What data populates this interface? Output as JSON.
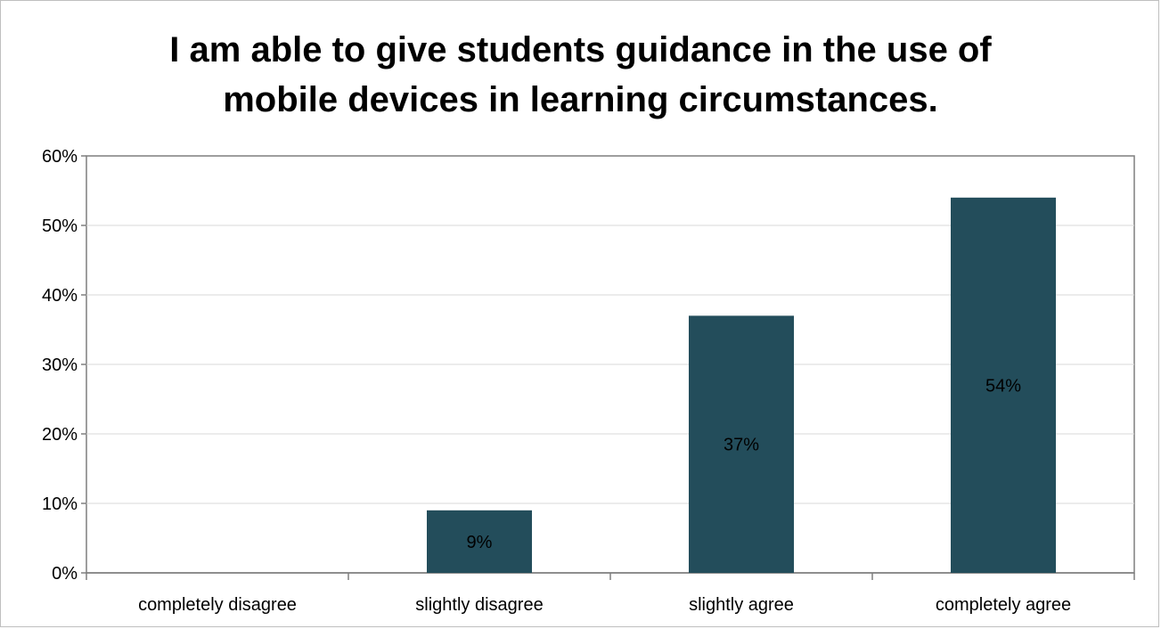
{
  "chart_data": {
    "type": "bar",
    "title_lines": [
      "I am able to give students guidance in the use of",
      "mobile devices in learning circumstances."
    ],
    "categories": [
      "completely disagree",
      "slightly disagree",
      "slightly agree",
      "completely agree"
    ],
    "values": [
      0,
      9,
      37,
      54
    ],
    "data_labels": [
      "",
      "9%",
      "37%",
      "54%"
    ],
    "y_ticks": [
      "0%",
      "10%",
      "20%",
      "30%",
      "40%",
      "50%",
      "60%"
    ],
    "ylim": [
      0,
      60
    ],
    "grid": true,
    "bar_color": "#234d5b",
    "gridline_color": "#d9d9d9",
    "axis_color": "#7f7f7f"
  }
}
